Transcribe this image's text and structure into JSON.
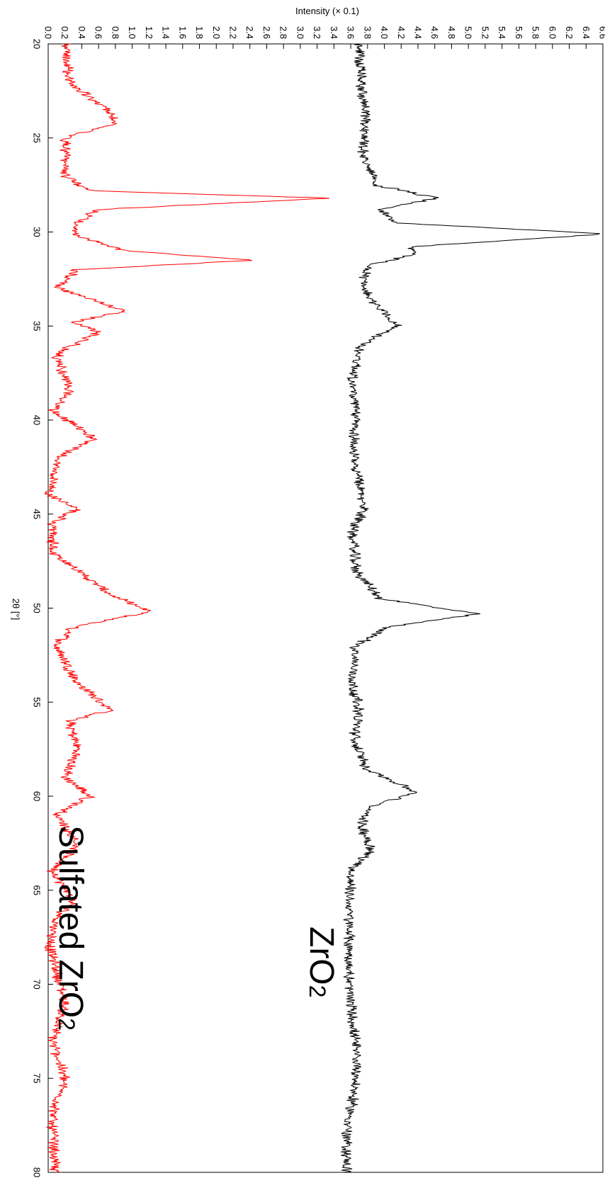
{
  "chart_data": {
    "type": "line",
    "orientation": "rotated-90",
    "title": "",
    "xlabel": "2θ [°]",
    "ylabel": "Intensity (× 0.1)",
    "xlim": [
      20,
      80
    ],
    "ylim": [
      0.0,
      6.6
    ],
    "x_ticks": [
      "20",
      "25",
      "30",
      "35",
      "40",
      "45",
      "50",
      "55",
      "60",
      "65",
      "70",
      "75",
      "80"
    ],
    "y_ticks": [
      "0.0",
      "0.2",
      "0.4",
      "0.6",
      "0.8",
      "1.0",
      "1.2",
      "1.4",
      "1.6",
      "1.8",
      "2.0",
      "2.2",
      "2.4",
      "2.6",
      "2.8",
      "3.0",
      "3.2",
      "3.4",
      "3.6",
      "3.8",
      "4.0",
      "4.2",
      "4.4",
      "4.6",
      "4.8",
      "5.0",
      "5.2",
      "5.4",
      "5.6",
      "5.8",
      "6.0",
      "6.2",
      "6.4",
      "6.6"
    ],
    "grid": false,
    "series": [
      {
        "name": "ZrO2",
        "label_main": "ZrO",
        "label_sub": "2",
        "color": "#000000",
        "x": [
          20,
          22,
          24,
          26,
          27.5,
          28.2,
          28.8,
          29.5,
          30.1,
          30.8,
          31.2,
          31.8,
          33,
          34.5,
          35,
          36,
          38,
          40,
          42,
          44.7,
          46,
          48,
          49.5,
          50.3,
          51,
          52,
          54,
          55.5,
          57,
          58.5,
          59.8,
          60.5,
          61.5,
          62.8,
          64,
          66,
          70,
          74.5,
          78,
          80
        ],
        "y": [
          3.7,
          3.72,
          3.78,
          3.75,
          3.9,
          4.62,
          3.98,
          4.1,
          6.62,
          4.3,
          4.35,
          3.8,
          3.73,
          4.05,
          4.15,
          3.72,
          3.62,
          3.66,
          3.63,
          3.76,
          3.62,
          3.66,
          3.95,
          5.1,
          4.05,
          3.66,
          3.62,
          3.7,
          3.64,
          3.78,
          4.38,
          3.85,
          3.72,
          3.85,
          3.6,
          3.58,
          3.58,
          3.68,
          3.55,
          3.55
        ]
      },
      {
        "name": "Sulfated ZrO2",
        "label_main": "Sulfated ZrO",
        "label_sub": "2",
        "color": "#ff0000",
        "x": [
          20,
          22,
          23.8,
          24.2,
          25,
          27,
          27.8,
          28.2,
          28.8,
          29.6,
          30.2,
          31,
          31.5,
          32,
          33,
          34.2,
          34.8,
          35.3,
          36.5,
          38.5,
          39.5,
          41,
          42,
          44,
          44.7,
          45.5,
          47,
          48.5,
          49.3,
          50.2,
          51,
          52,
          54,
          55.4,
          56,
          57.5,
          59,
          60,
          61,
          62.5,
          64,
          65.5,
          66.5,
          68,
          71,
          73,
          75,
          77,
          80
        ],
        "y": [
          0.22,
          0.24,
          0.78,
          0.8,
          0.2,
          0.2,
          0.5,
          3.35,
          0.6,
          0.3,
          0.35,
          0.9,
          2.45,
          0.35,
          0.12,
          0.92,
          0.3,
          0.6,
          0.1,
          0.25,
          0.05,
          0.55,
          0.12,
          0.02,
          0.35,
          0.05,
          0.05,
          0.5,
          0.75,
          1.2,
          0.3,
          0.1,
          0.35,
          0.75,
          0.25,
          0.35,
          0.2,
          0.5,
          0.1,
          0.35,
          0.05,
          0.3,
          0.1,
          0.02,
          0.2,
          0.05,
          0.2,
          0.05,
          0.08
        ]
      }
    ]
  }
}
